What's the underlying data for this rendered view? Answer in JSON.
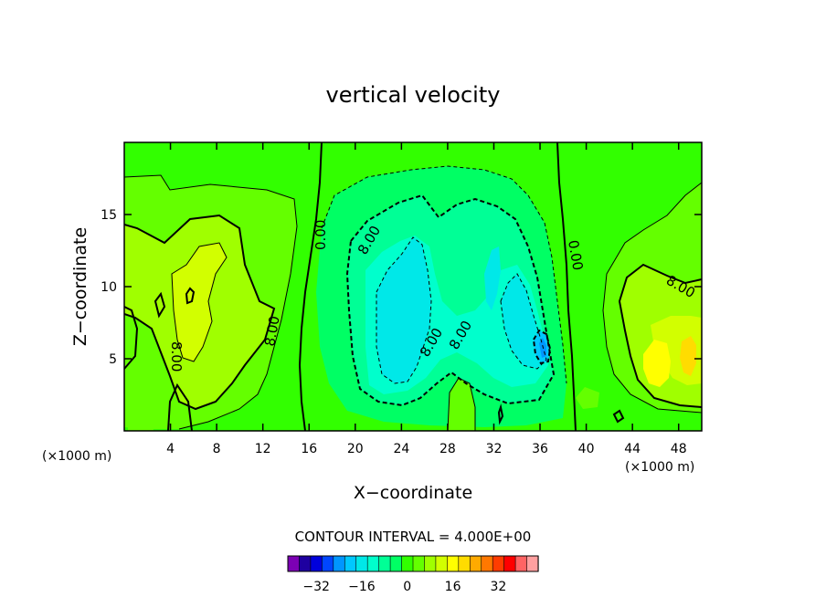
{
  "chart_data": {
    "type": "contour",
    "title": "vertical velocity",
    "xlabel": "X−coordinate",
    "ylabel": "Z−coordinate",
    "x_unit": "(×1000 m)",
    "z_unit": "(×1000 m)",
    "xlim": [
      0,
      50
    ],
    "ylim": [
      0,
      20
    ],
    "x_ticks": [
      4,
      8,
      12,
      16,
      20,
      24,
      28,
      32,
      36,
      40,
      44,
      48
    ],
    "y_ticks": [
      5,
      10,
      15
    ],
    "contour_interval_text": "CONTOUR INTERVAL = 4.000E+00",
    "contour_labels": [
      "0.00",
      "8.00",
      "8.00",
      "0.00",
      "8.00",
      "8.00",
      "8.00",
      "8.00"
    ],
    "colorbar": {
      "levels": [
        -36,
        -32,
        -28,
        -24,
        -20,
        -16,
        -12,
        -8,
        -4,
        0,
        4,
        8,
        12,
        16,
        20,
        24,
        28,
        32,
        36
      ],
      "tick_labels": [
        "−32",
        "−16",
        "0",
        "16",
        "32"
      ],
      "tick_values": [
        -32,
        -16,
        0,
        16,
        32
      ],
      "colors": [
        "#7c00b4",
        "#1e00a0",
        "#0000dc",
        "#0046ff",
        "#0096ff",
        "#00c8ff",
        "#00e8e8",
        "#00ffcc",
        "#00ff96",
        "#00ff64",
        "#32ff00",
        "#64ff00",
        "#a0ff00",
        "#d2ff00",
        "#ffff00",
        "#ffdc00",
        "#ffaa00",
        "#ff7800",
        "#ff3c00",
        "#ff0000",
        "#ff6464",
        "#ffa0a0"
      ]
    },
    "features": [
      {
        "type": "updraft",
        "x": 5.5,
        "z": 9,
        "peak": 12
      },
      {
        "type": "downdraft",
        "x": 25,
        "z": 9,
        "peak": -14
      },
      {
        "type": "downdraft",
        "x": 33.5,
        "z": 8,
        "peak": -12
      },
      {
        "type": "downdraft",
        "x": 36,
        "z": 5.5,
        "peak": -20
      },
      {
        "type": "updraft",
        "x": 46.5,
        "z": 5,
        "peak": 14
      },
      {
        "type": "updraft",
        "x": 49,
        "z": 5.5,
        "peak": 20
      }
    ]
  }
}
